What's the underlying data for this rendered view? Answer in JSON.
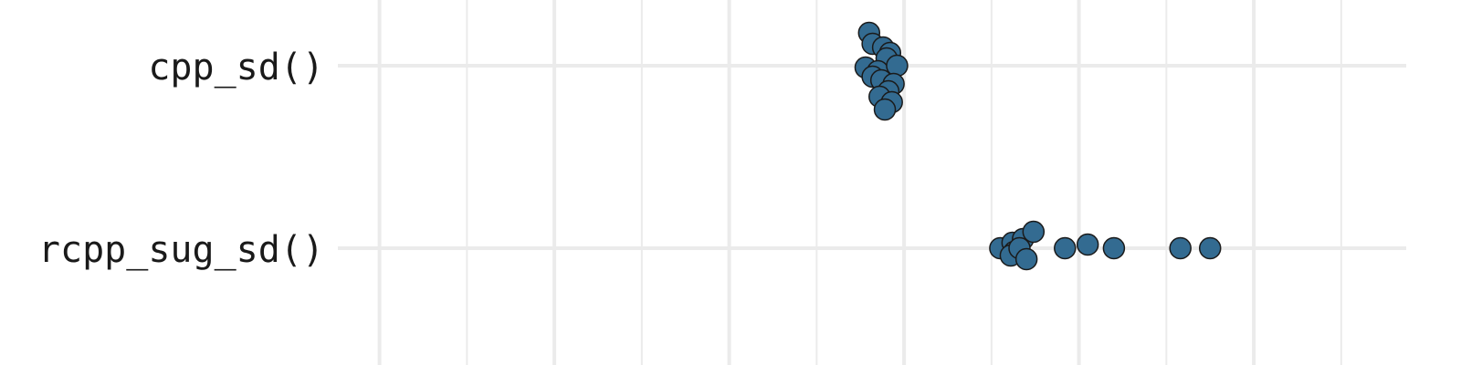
{
  "chart_data": {
    "type": "scatter",
    "categories": [
      "cpp_sd()",
      "rcpp_sug_sd()"
    ],
    "point_color": "#336b91",
    "grid": true,
    "xlim": [
      -0.3,
      6.5
    ],
    "series": [
      {
        "category": "cpp_sd()",
        "x": [
          2.8,
          2.82,
          2.88,
          2.92,
          2.9,
          2.78,
          2.85,
          2.96,
          2.82,
          2.87,
          2.94,
          2.91,
          2.86,
          2.93,
          2.89
        ],
        "jitter": [
          -0.36,
          -0.24,
          -0.2,
          -0.14,
          -0.08,
          0.02,
          0.06,
          0.0,
          0.12,
          0.16,
          0.2,
          0.28,
          0.34,
          0.4,
          0.48
        ]
      },
      {
        "category": "rcpp_sug_sd()",
        "x": [
          3.55,
          3.62,
          3.68,
          3.74,
          3.63,
          3.61,
          3.66,
          3.7,
          3.92,
          4.05,
          4.2,
          4.58,
          4.75
        ],
        "jitter": [
          0.0,
          -0.06,
          -0.1,
          -0.18,
          0.04,
          0.08,
          0.0,
          0.12,
          0.0,
          -0.04,
          0.0,
          0.0,
          0.0
        ]
      }
    ]
  }
}
